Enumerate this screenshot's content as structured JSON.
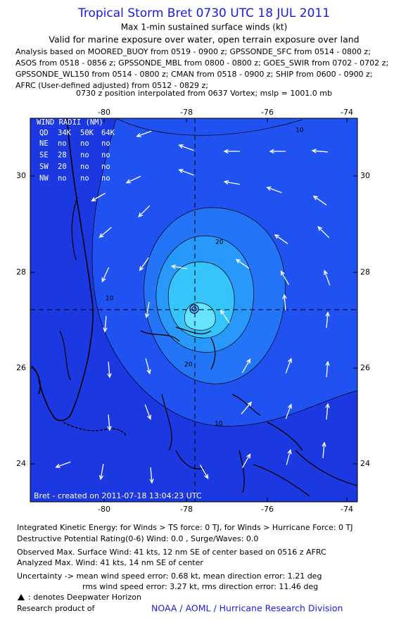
{
  "header": {
    "title": "Tropical Storm Bret 0730 UTC 18 JUL 2011",
    "subtitle": "Max 1-min sustained surface winds (kt)",
    "validity": "Valid for marine exposure over water, open terrain exposure over land",
    "analysis": [
      "Analysis based on MOORED_BUOY from 0519 - 0900 z; GPSSONDE_SFC from 0514 - 0800 z;",
      "ASOS from 0518 - 0856 z; GPSSONDE_MBL from 0800 - 0800 z; GOES_SWIR from 0702 - 0702 z;",
      "GPSSONDE_WL150 from 0514 - 0800 z; CMAN from 0518 - 0900 z; SHIP from 0600 - 0900 z;",
      "AFRC (User-defined adjusted) from 0512 - 0829 z;"
    ],
    "position_note": "0730 z position interpolated from 0637 Vortex; mslp = 1001.0 mb"
  },
  "map": {
    "lon_labels": [
      "-80",
      "-78",
      "-76",
      "-74"
    ],
    "lat_labels": [
      "30",
      "28",
      "26",
      "24"
    ],
    "contour_labels": [
      "10",
      "10",
      "20",
      "20",
      "10"
    ],
    "wind_radii": {
      "title": "WIND RADII (NM)",
      "header": [
        "QD",
        "34K",
        "50K",
        "64K"
      ],
      "rows": [
        [
          "NE",
          "no",
          "no",
          "no"
        ],
        [
          "SE",
          "28",
          "no",
          "no"
        ],
        [
          "SW",
          "20",
          "no",
          "no"
        ],
        [
          "NW",
          "no",
          "no",
          "no"
        ]
      ]
    },
    "created": "Bret - created on 2011-07-18 13:04:23 UTC"
  },
  "footer": {
    "ike": "Integrated Kinetic Energy:  for Winds > TS force: 0 TJ,  for Winds > Hurricane Force: 0 TJ",
    "dpr": "Destructive Potential Rating(0-6)   Wind: 0.0 , Surge/Waves: 0.0",
    "observed": "Observed Max. Surface Wind: 41 kts, 12 nm SE of center based on 0516 z AFRC",
    "analyzed": "Analyzed Max. Wind: 41 kts, 14 nm SE of center",
    "uncertainty": [
      "Uncertainty -> mean wind speed error: 0.68 kt,   mean direction error: 1.21 deg",
      "rms wind speed error: 3.27 kt,   rms direction error: 11.46 deg"
    ],
    "legend_note": ": denotes Deepwater Horizon",
    "research": "Research product of",
    "agency": "NOAA / AOML / Hurricane Research Division"
  }
}
